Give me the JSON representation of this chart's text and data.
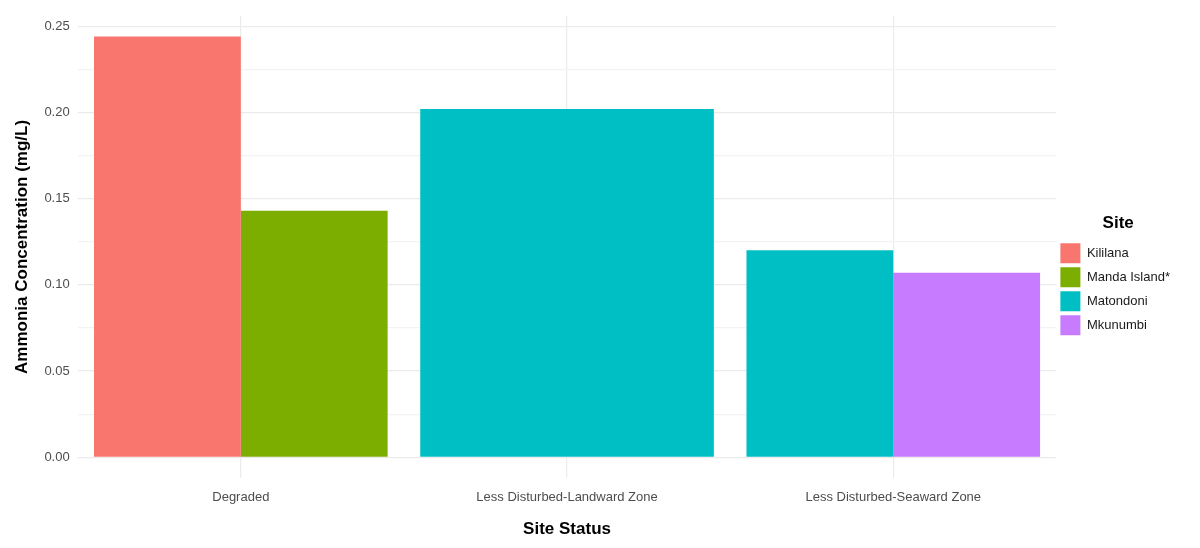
{
  "chart_data": {
    "type": "bar",
    "xlabel": "Site Status",
    "ylabel": "Ammonia Concentration (mg/L)",
    "legend_title": "Site",
    "legend": "right",
    "grid": true,
    "categories": [
      "Degraded",
      "Less Disturbed-Landward Zone",
      "Less Disturbed-Seaward Zone"
    ],
    "series": [
      {
        "name": "Kililana",
        "color": "#f8766d",
        "values": [
          0.244,
          null,
          null
        ]
      },
      {
        "name": "Manda Island*",
        "color": "#7cae00",
        "values": [
          0.143,
          null,
          null
        ]
      },
      {
        "name": "Matondoni",
        "color": "#00bfc4",
        "values": [
          null,
          0.202,
          0.12
        ]
      },
      {
        "name": "Mkunumbi",
        "color": "#c77cff",
        "values": [
          null,
          null,
          0.107
        ]
      }
    ],
    "ylim": [
      -0.012,
      0.256
    ],
    "yticks": [
      {
        "value": 0,
        "label": "0.00"
      },
      {
        "value": 0.025,
        "label": null
      },
      {
        "value": 0.05,
        "label": "0.05"
      },
      {
        "value": 0.075,
        "label": null
      },
      {
        "value": 0.1,
        "label": "0.10"
      },
      {
        "value": 0.125,
        "label": null
      },
      {
        "value": 0.15,
        "label": "0.15"
      },
      {
        "value": 0.175,
        "label": null
      },
      {
        "value": 0.2,
        "label": "0.20"
      },
      {
        "value": 0.225,
        "label": null
      },
      {
        "value": 0.25,
        "label": "0.25"
      }
    ]
  }
}
